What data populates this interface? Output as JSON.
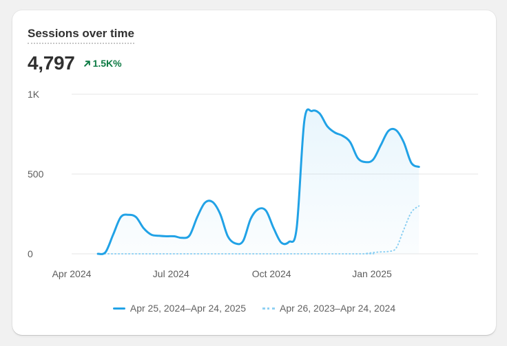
{
  "card": {
    "title": "Sessions over time",
    "total": "4,797",
    "delta": "1.5K%",
    "delta_icon": "arrow-up-right-icon"
  },
  "colors": {
    "current": "#21a2e6",
    "previous": "#8fd1f3",
    "delta": "#0c7a43",
    "grid": "#e6e6e6"
  },
  "legend": {
    "current_label": "Apr 25, 2024–Apr 24, 2025",
    "previous_label": "Apr 26, 2023–Apr 24, 2024"
  },
  "chart_data": {
    "type": "line",
    "title": "Sessions over time",
    "xlabel": "",
    "ylabel": "",
    "ylim": [
      0,
      1000
    ],
    "y_ticks": [
      {
        "value": 0,
        "label": "0"
      },
      {
        "value": 500,
        "label": "500"
      },
      {
        "value": 1000,
        "label": "1K"
      }
    ],
    "x_ticks": [
      {
        "date": "2024-04-01",
        "label": "Apr 2024"
      },
      {
        "date": "2024-07-01",
        "label": "Jul 2024"
      },
      {
        "date": "2024-10-01",
        "label": "Oct 2024"
      },
      {
        "date": "2025-01-01",
        "label": "Jan 2025"
      }
    ],
    "grid": true,
    "legend_position": "bottom",
    "series": [
      {
        "name": "Apr 25, 2024–Apr 24, 2025",
        "style": "solid",
        "area_fill": true,
        "points": [
          [
            "2024-04-25",
            0
          ],
          [
            "2024-05-02",
            10
          ],
          [
            "2024-05-09",
            120
          ],
          [
            "2024-05-16",
            230
          ],
          [
            "2024-05-23",
            245
          ],
          [
            "2024-05-30",
            230
          ],
          [
            "2024-06-06",
            160
          ],
          [
            "2024-06-13",
            120
          ],
          [
            "2024-06-20",
            113
          ],
          [
            "2024-06-27",
            110
          ],
          [
            "2024-07-04",
            110
          ],
          [
            "2024-07-11",
            100
          ],
          [
            "2024-07-18",
            115
          ],
          [
            "2024-07-25",
            230
          ],
          [
            "2024-08-01",
            320
          ],
          [
            "2024-08-08",
            325
          ],
          [
            "2024-08-15",
            250
          ],
          [
            "2024-08-22",
            110
          ],
          [
            "2024-08-29",
            65
          ],
          [
            "2024-09-05",
            80
          ],
          [
            "2024-09-12",
            220
          ],
          [
            "2024-09-19",
            280
          ],
          [
            "2024-09-26",
            270
          ],
          [
            "2024-10-03",
            160
          ],
          [
            "2024-10-10",
            70
          ],
          [
            "2024-10-17",
            75
          ],
          [
            "2024-10-24",
            160
          ],
          [
            "2024-10-31",
            830
          ],
          [
            "2024-11-07",
            895
          ],
          [
            "2024-11-14",
            880
          ],
          [
            "2024-11-21",
            800
          ],
          [
            "2024-11-28",
            760
          ],
          [
            "2024-12-05",
            740
          ],
          [
            "2024-12-12",
            700
          ],
          [
            "2024-12-19",
            600
          ],
          [
            "2024-12-26",
            575
          ],
          [
            "2025-01-02",
            590
          ],
          [
            "2025-01-09",
            680
          ],
          [
            "2025-01-16",
            770
          ],
          [
            "2025-01-23",
            775
          ],
          [
            "2025-01-30",
            700
          ],
          [
            "2025-02-06",
            570
          ],
          [
            "2025-02-13",
            545
          ]
        ]
      },
      {
        "name": "Apr 26, 2023–Apr 24, 2024",
        "style": "dotted",
        "area_fill": false,
        "points": [
          [
            "2024-04-25",
            0
          ],
          [
            "2024-12-12",
            0
          ],
          [
            "2024-12-26",
            2
          ],
          [
            "2025-01-02",
            8
          ],
          [
            "2025-01-09",
            12
          ],
          [
            "2025-01-16",
            15
          ],
          [
            "2025-01-23",
            35
          ],
          [
            "2025-01-30",
            150
          ],
          [
            "2025-02-06",
            260
          ],
          [
            "2025-02-13",
            300
          ]
        ]
      }
    ]
  }
}
